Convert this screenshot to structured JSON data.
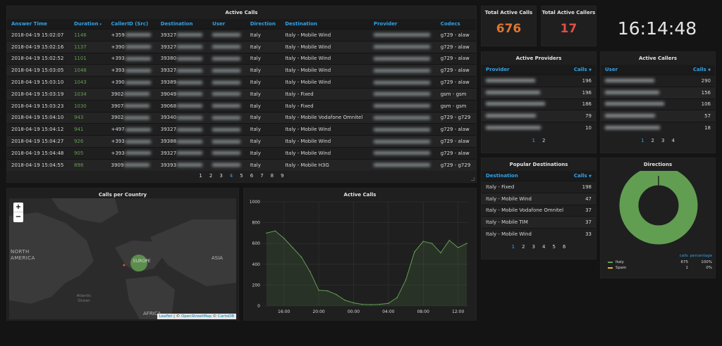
{
  "active_calls": {
    "title": "Active Calls",
    "columns": [
      "Answer Time",
      "Duration",
      "CallerID (Src)",
      "Destination",
      "User",
      "Direction",
      "Destination",
      "Provider",
      "Codecs"
    ],
    "sort_arrow": "▾",
    "rows": [
      [
        "2018-04-19 15:02:07",
        "1146",
        "+359",
        "39327",
        "",
        "Italy",
        "Italy - Mobile Wind",
        "",
        "g729 - alaw"
      ],
      [
        "2018-04-19 15:02:16",
        "1137",
        "+390",
        "39327",
        "",
        "Italy",
        "Italy - Mobile Wind",
        "",
        "g729 - alaw"
      ],
      [
        "2018-04-19 15:02:52",
        "1101",
        "+393",
        "39380",
        "",
        "Italy",
        "Italy - Mobile Wind",
        "",
        "g729 - alaw"
      ],
      [
        "2018-04-19 15:03:05",
        "1048",
        "+393",
        "39327",
        "",
        "Italy",
        "Italy - Mobile Wind",
        "",
        "g729 - alaw"
      ],
      [
        "2018-04-19 15:03:10",
        "1043",
        "+390",
        "39389",
        "",
        "Italy",
        "Italy - Mobile Wind",
        "",
        "g729 - alaw"
      ],
      [
        "2018-04-19 15:03:19",
        "1034",
        "3902",
        "39049",
        "",
        "Italy",
        "Italy - Fixed",
        "",
        "gsm - gsm"
      ],
      [
        "2018-04-19 15:03:23",
        "1030",
        "3907",
        "39068",
        "",
        "Italy",
        "Italy - Fixed",
        "",
        "gsm - gsm"
      ],
      [
        "2018-04-19 15:04:10",
        "943",
        "3902",
        "39340",
        "",
        "Italy",
        "Italy - Mobile Vodafone Omnitel",
        "",
        "g729 - g729"
      ],
      [
        "2018-04-19 15:04:12",
        "941",
        "+497",
        "39327",
        "",
        "Italy",
        "Italy - Mobile Wind",
        "",
        "g729 - alaw"
      ],
      [
        "2018-04-19 15:04:27",
        "926",
        "+393",
        "39388",
        "",
        "Italy",
        "Italy - Mobile Wind",
        "",
        "g729 - alaw"
      ],
      [
        "2018-04-19 15:04:48",
        "905",
        "+393",
        "39327",
        "",
        "Italy",
        "Italy - Mobile Wind",
        "",
        "g729 - alaw"
      ],
      [
        "2018-04-19 15:04:55",
        "898",
        "3909",
        "39393",
        "",
        "Italy",
        "Italy - Mobile H3G",
        "",
        "g729 - g729"
      ]
    ],
    "pages": [
      "1",
      "2",
      "3",
      "4",
      "5",
      "6",
      "7",
      "8",
      "9"
    ],
    "active_page": "4"
  },
  "stats": {
    "total_calls_label": "Total Active Calls",
    "total_calls_value": "676",
    "total_calls_color": "#e0752d",
    "total_callers_label": "Total Active Callers",
    "total_callers_value": "17",
    "total_callers_color": "#e24d42"
  },
  "clock": "16:14:48",
  "active_providers": {
    "title": "Active Providers",
    "col_provider": "Provider",
    "col_calls": "Calls",
    "calls": [
      "196",
      "196",
      "186",
      "79",
      "10"
    ],
    "pages": [
      "1",
      "2"
    ],
    "active_page": "1"
  },
  "active_callers": {
    "title": "Active Callers",
    "col_user": "User",
    "col_calls": "Calls",
    "calls": [
      "290",
      "156",
      "106",
      "57",
      "18"
    ],
    "pages": [
      "1",
      "2",
      "3",
      "4"
    ],
    "active_page": "1"
  },
  "popular_destinations": {
    "title": "Popular Destinations",
    "col_destination": "Destination",
    "col_calls": "Calls",
    "rows": [
      [
        "Italy - Fixed",
        "198"
      ],
      [
        "Italy - Mobile Wind",
        "47"
      ],
      [
        "Italy - Mobile Vodafone Omnitel",
        "37"
      ],
      [
        "Italy - Mobile TIM",
        "37"
      ],
      [
        "Italy - Mobile Wind",
        "33"
      ]
    ],
    "pages": [
      "1",
      "2",
      "3",
      "4",
      "5",
      "6"
    ],
    "active_page": "1"
  },
  "map_panel": {
    "title": "Calls per Country",
    "zoom_in": "+",
    "zoom_out": "−",
    "labels": [
      "NORTH AMERICA",
      "EUROPE",
      "ASIA",
      "AFRICA",
      "Atlantic Ocean"
    ],
    "attribution_leaflet": "Leaflet",
    "attribution_sep": " | © ",
    "attribution_osm": "OpenStreetMap",
    "attribution_sep2": " © ",
    "attribution_carto": "CartoDB"
  },
  "directions": {
    "title": "Directions",
    "legend_header_calls": "calls",
    "legend_header_pct": "percentage",
    "items": [
      {
        "name": "Italy",
        "calls": "675",
        "percentage": "100%",
        "color": "#629e51"
      },
      {
        "name": "Spain",
        "calls": "1",
        "percentage": "0%",
        "color": "#eab839"
      }
    ]
  },
  "chart_data": {
    "type": "area",
    "title": "Active Calls",
    "x_ticks": [
      "16:00",
      "20:00",
      "00:00",
      "04:00",
      "08:00",
      "12:00"
    ],
    "y_ticks": [
      0,
      200,
      400,
      600,
      800,
      1000
    ],
    "ylim": [
      0,
      1000
    ],
    "series": [
      {
        "x": [
          "14:00",
          "15:00",
          "16:00",
          "17:00",
          "18:00",
          "19:00",
          "20:00",
          "21:00",
          "22:00",
          "23:00",
          "00:00",
          "01:00",
          "02:00",
          "03:00",
          "04:00",
          "05:00",
          "06:00",
          "07:00",
          "08:00",
          "09:00",
          "10:00",
          "11:00",
          "12:00",
          "13:00"
        ],
        "values": [
          700,
          720,
          650,
          560,
          470,
          330,
          150,
          145,
          110,
          55,
          30,
          15,
          12,
          15,
          25,
          80,
          250,
          520,
          620,
          600,
          510,
          630,
          560,
          600
        ]
      }
    ],
    "color": "#629e51",
    "grid": true
  }
}
